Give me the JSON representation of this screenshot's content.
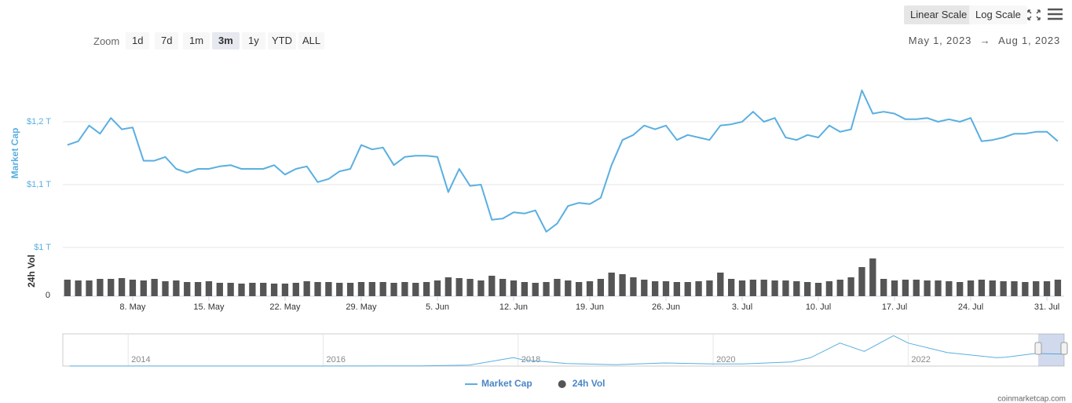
{
  "toolbar": {
    "zoom_label": "Zoom",
    "zoom_buttons": [
      "1d",
      "7d",
      "1m",
      "3m",
      "1y",
      "YTD",
      "ALL"
    ],
    "scale_buttons": [
      "Linear Scale",
      "Log Scale"
    ],
    "range": {
      "from": "May 1, 2023",
      "arrow": "→",
      "to": "Aug 1, 2023"
    }
  },
  "chart_data": [
    {
      "type": "line",
      "y_label": "Market Cap",
      "y2_label": "24h Vol",
      "x": [
        "2023-05-02",
        "2023-05-03",
        "2023-05-04",
        "2023-05-05",
        "2023-05-06",
        "2023-05-07",
        "2023-05-08",
        "2023-05-09",
        "2023-05-10",
        "2023-05-11",
        "2023-05-12",
        "2023-05-13",
        "2023-05-14",
        "2023-05-15",
        "2023-05-16",
        "2023-05-17",
        "2023-05-18",
        "2023-05-19",
        "2023-05-20",
        "2023-05-21",
        "2023-05-22",
        "2023-05-23",
        "2023-05-24",
        "2023-05-25",
        "2023-05-26",
        "2023-05-27",
        "2023-05-28",
        "2023-05-29",
        "2023-05-30",
        "2023-05-31",
        "2023-06-01",
        "2023-06-02",
        "2023-06-03",
        "2023-06-04",
        "2023-06-05",
        "2023-06-06",
        "2023-06-07",
        "2023-06-08",
        "2023-06-09",
        "2023-06-10",
        "2023-06-11",
        "2023-06-12",
        "2023-06-13",
        "2023-06-14",
        "2023-06-15",
        "2023-06-16",
        "2023-06-17",
        "2023-06-18",
        "2023-06-19",
        "2023-06-20",
        "2023-06-21",
        "2023-06-22",
        "2023-06-23",
        "2023-06-24",
        "2023-06-25",
        "2023-06-26",
        "2023-06-27",
        "2023-06-28",
        "2023-06-29",
        "2023-06-30",
        "2023-07-01",
        "2023-07-02",
        "2023-07-03",
        "2023-07-04",
        "2023-07-05",
        "2023-07-06",
        "2023-07-07",
        "2023-07-08",
        "2023-07-09",
        "2023-07-10",
        "2023-07-11",
        "2023-07-12",
        "2023-07-13",
        "2023-07-14",
        "2023-07-15",
        "2023-07-16",
        "2023-07-17",
        "2023-07-18",
        "2023-07-19",
        "2023-07-20",
        "2023-07-21",
        "2023-07-22",
        "2023-07-23",
        "2023-07-24",
        "2023-07-25",
        "2023-07-26",
        "2023-07-27",
        "2023-07-28",
        "2023-07-29",
        "2023-07-30",
        "2023-07-31",
        "2023-08-01"
      ],
      "xlim": [
        "2023-05-01T14:00",
        "2023-08-01T14:00"
      ],
      "xticks": [
        {
          "value": "2023-05-08",
          "label": "8. May"
        },
        {
          "value": "2023-05-15",
          "label": "15. May"
        },
        {
          "value": "2023-05-22",
          "label": "22. May"
        },
        {
          "value": "2023-05-29",
          "label": "29. May"
        },
        {
          "value": "2023-06-05",
          "label": "5. Jun"
        },
        {
          "value": "2023-06-12",
          "label": "12. Jun"
        },
        {
          "value": "2023-06-19",
          "label": "19. Jun"
        },
        {
          "value": "2023-06-26",
          "label": "26. Jun"
        },
        {
          "value": "2023-07-03",
          "label": "3. Jul"
        },
        {
          "value": "2023-07-10",
          "label": "10. Jul"
        },
        {
          "value": "2023-07-17",
          "label": "17. Jul"
        },
        {
          "value": "2023-07-24",
          "label": "24. Jul"
        },
        {
          "value": "2023-07-31",
          "label": "31. Jul"
        }
      ],
      "ylim": [
        1,
        1.3
      ],
      "yticks": [
        {
          "value": 1,
          "label": "$1 T"
        },
        {
          "value": 1.1,
          "label": "$1,1 T"
        },
        {
          "value": 1.2,
          "label": "$1,2 T"
        }
      ],
      "y2lim": [
        0,
        60
      ],
      "y2ticks": [
        0
      ],
      "grid": true,
      "legend": "bottom",
      "series": [
        {
          "name": "Market Cap",
          "color": "#5aafe0",
          "values": [
            1.163,
            1.169,
            1.194,
            1.181,
            1.206,
            1.188,
            1.191,
            1.138,
            1.138,
            1.144,
            1.125,
            1.119,
            1.125,
            1.125,
            1.129,
            1.131,
            1.125,
            1.125,
            1.125,
            1.131,
            1.116,
            1.125,
            1.129,
            1.104,
            1.109,
            1.121,
            1.125,
            1.163,
            1.156,
            1.159,
            1.131,
            1.144,
            1.146,
            1.146,
            1.144,
            1.088,
            1.125,
            1.098,
            1.1,
            1.044,
            1.046,
            1.056,
            1.054,
            1.059,
            1.025,
            1.038,
            1.066,
            1.071,
            1.069,
            1.079,
            1.131,
            1.171,
            1.179,
            1.194,
            1.188,
            1.194,
            1.171,
            1.179,
            1.175,
            1.171,
            1.194,
            1.196,
            1.2,
            1.216,
            1.2,
            1.206,
            1.175,
            1.171,
            1.179,
            1.175,
            1.194,
            1.184,
            1.188,
            1.25,
            1.213,
            1.216,
            1.213,
            1.204,
            1.204,
            1.206,
            1.2,
            1.204,
            1.2,
            1.206,
            1.169,
            1.171,
            1.175,
            1.181,
            1.181,
            1.184,
            1.184,
            1.169
          ]
        },
        {
          "name": "24h Vol",
          "color": "#555555",
          "type": "bar",
          "axis": "y2",
          "values": [
            21,
            20,
            20,
            22,
            22,
            23,
            21,
            20,
            22,
            19,
            20,
            18,
            18,
            19,
            17,
            17,
            16,
            17,
            17,
            16,
            16,
            17,
            19,
            18,
            18,
            17,
            17,
            18,
            18,
            18,
            17,
            18,
            17,
            18,
            20,
            24,
            23,
            22,
            20,
            26,
            22,
            20,
            18,
            17,
            18,
            22,
            20,
            18,
            19,
            22,
            30,
            28,
            24,
            21,
            19,
            19,
            18,
            18,
            19,
            20,
            30,
            22,
            20,
            21,
            21,
            20,
            20,
            19,
            18,
            17,
            19,
            21,
            24,
            37,
            48,
            22,
            20,
            21,
            21,
            20,
            20,
            19,
            18,
            20,
            21,
            20,
            19,
            19,
            18,
            19,
            19,
            21
          ]
        }
      ]
    },
    {
      "type": "area",
      "color": "#5aafe0",
      "x": [
        2013.4,
        2014,
        2015,
        2016,
        2017,
        2017.5,
        2017.95,
        2018.05,
        2018.5,
        2019,
        2019.5,
        2020,
        2020.3,
        2020.8,
        2021,
        2021.3,
        2021.55,
        2021.85,
        2022,
        2022.4,
        2022.9,
        2023,
        2023.3,
        2023.6
      ],
      "values": [
        0.01,
        0.01,
        0.005,
        0.01,
        0.02,
        0.1,
        0.8,
        0.6,
        0.25,
        0.13,
        0.3,
        0.2,
        0.2,
        0.4,
        0.8,
        2.2,
        1.4,
        2.9,
        2.2,
        1.3,
        0.8,
        0.85,
        1.2,
        1.15
      ],
      "xlim": [
        2013.33,
        2023.6
      ],
      "xticks": [
        2014,
        2016,
        2018,
        2020,
        2022
      ],
      "ylim": [
        0,
        3
      ]
    }
  ],
  "credit": "coinmarketcap.com"
}
